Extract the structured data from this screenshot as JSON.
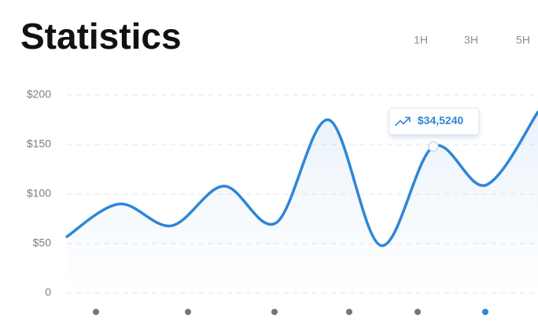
{
  "chart_data": {
    "type": "line",
    "title": "Statistics",
    "range_options": [
      "1H",
      "3H",
      "5H"
    ],
    "series": [
      {
        "color": "#2f86d6",
        "values": [
          57,
          90,
          68,
          108,
          71,
          175,
          48,
          148,
          109,
          183
        ]
      }
    ],
    "ylim": [
      0,
      200
    ],
    "yticks": [
      0,
      {
        "value": 50,
        "label": "$50"
      },
      {
        "value": 100,
        "label": "$100"
      },
      {
        "value": 150,
        "label": "$150"
      },
      {
        "value": 200,
        "label": "$200"
      }
    ],
    "grid": true,
    "annotations": [
      {
        "text": "$34,5240",
        "point": 7
      }
    ]
  }
}
